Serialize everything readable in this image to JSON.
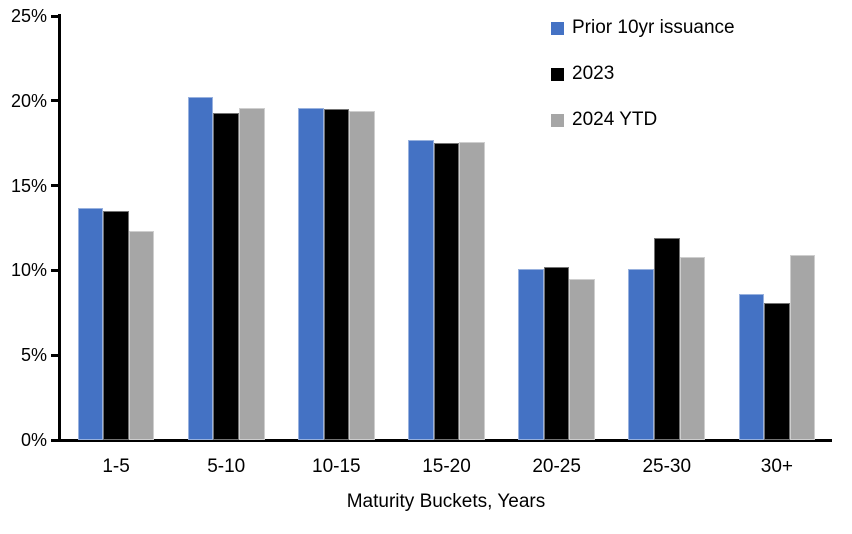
{
  "chart_data": {
    "type": "bar",
    "title": "",
    "xlabel": "Maturity Buckets, Years",
    "ylabel": "",
    "categories": [
      "1-5",
      "5-10",
      "10-15",
      "15-20",
      "20-25",
      "25-30",
      "30+"
    ],
    "series": [
      {
        "name": "Prior 10yr issuance",
        "color": "#4472C4",
        "values": [
          13.7,
          20.2,
          19.6,
          17.7,
          10.1,
          10.1,
          8.6
        ]
      },
      {
        "name": "2023",
        "color": "#000000",
        "values": [
          13.5,
          19.3,
          19.5,
          17.5,
          10.2,
          11.9,
          8.1
        ]
      },
      {
        "name": "2024 YTD",
        "color": "#A6A6A6",
        "values": [
          12.3,
          19.6,
          19.4,
          17.6,
          9.5,
          10.8,
          10.9
        ]
      }
    ],
    "ylim": [
      0,
      25
    ],
    "yticks": [
      0,
      5,
      10,
      15,
      20,
      25
    ],
    "ytick_labels": [
      "0%",
      "5%",
      "10%",
      "15%",
      "20%",
      "25%"
    ],
    "grid": false,
    "legend_position": "top-right",
    "axis_color": "#000000",
    "background_color": "#FFFFFF"
  }
}
